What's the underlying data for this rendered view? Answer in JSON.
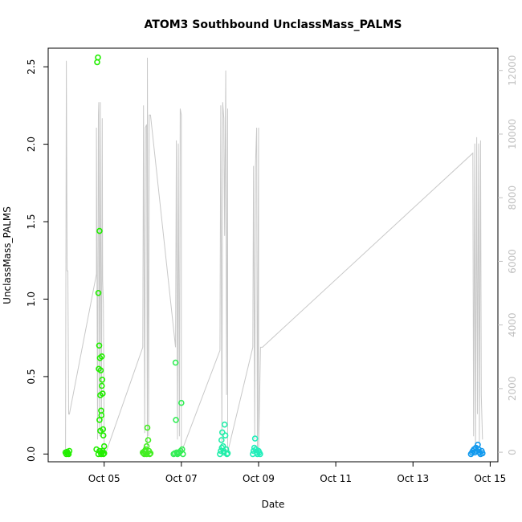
{
  "chart_data": {
    "type": "scatter",
    "title": "ATOM3 Southbound UnclassMass_PALMS",
    "xlabel": "Date",
    "ylabel": "UnclassMass_PALMS",
    "x_unit": "day of October",
    "xlim": [
      3.55,
      15.2
    ],
    "ylim": [
      -0.05,
      2.62
    ],
    "y2lim": [
      -300,
      12700
    ],
    "x_ticks": [
      {
        "value": 5,
        "label": "Oct 05"
      },
      {
        "value": 7,
        "label": "Oct 07"
      },
      {
        "value": 9,
        "label": "Oct 09"
      },
      {
        "value": 11,
        "label": "Oct 11"
      },
      {
        "value": 13,
        "label": "Oct 13"
      },
      {
        "value": 15,
        "label": "Oct 15"
      }
    ],
    "y_ticks": [
      {
        "value": 0.0,
        "label": "0.0"
      },
      {
        "value": 0.5,
        "label": "0.5"
      },
      {
        "value": 1.0,
        "label": "1.0"
      },
      {
        "value": 1.5,
        "label": "1.5"
      },
      {
        "value": 2.0,
        "label": "2.0"
      },
      {
        "value": 2.5,
        "label": "2.5"
      }
    ],
    "y2_ticks": [
      {
        "value": 0,
        "label": "0"
      },
      {
        "value": 2000,
        "label": "2000"
      },
      {
        "value": 4000,
        "label": "4000"
      },
      {
        "value": 6000,
        "label": "6000"
      },
      {
        "value": 8000,
        "label": "8000"
      },
      {
        "value": 10000,
        "label": "10000"
      },
      {
        "value": 12000,
        "label": "12000"
      }
    ],
    "colors": {
      "altitude_line": "#c8c8c8",
      "right_axis": "#c0c0c0",
      "axis": "#000000"
    },
    "altitude_line": {
      "name": "",
      "axis": "right",
      "x": [
        4.0,
        4.02,
        4.04,
        4.06,
        4.08,
        4.1,
        4.8,
        4.8,
        4.83,
        4.85,
        4.86,
        4.88,
        4.9,
        4.9,
        4.93,
        4.95,
        4.96,
        4.98,
        5.0,
        5.0,
        5.05,
        6.0,
        6.02,
        6.05,
        6.07,
        6.1,
        6.12,
        6.12,
        6.15,
        6.17,
        6.2,
        6.85,
        6.87,
        6.9,
        6.92,
        6.95,
        6.97,
        7.0,
        7.0,
        8.0,
        8.02,
        8.05,
        8.07,
        8.1,
        8.12,
        8.15,
        8.17,
        8.2,
        8.2,
        8.85,
        8.87,
        8.9,
        8.92,
        8.95,
        8.97,
        9.0,
        9.0,
        9.05,
        9.1,
        14.55,
        14.57,
        14.6,
        14.62,
        14.65,
        14.67,
        14.7,
        14.72,
        14.75,
        14.77,
        14.8
      ],
      "y": [
        0,
        12300,
        5700,
        5700,
        1200,
        1200,
        5600,
        10200,
        400,
        10600,
        11000,
        500,
        10400,
        11000,
        500,
        10500,
        5400,
        4700,
        500,
        0,
        0,
        3300,
        10900,
        600,
        10200,
        10300,
        0,
        12400,
        500,
        10600,
        10600,
        3300,
        9800,
        400,
        9700,
        500,
        10800,
        10600,
        0,
        3200,
        10900,
        300,
        11000,
        10500,
        6800,
        12000,
        1800,
        10800,
        0,
        3300,
        9000,
        400,
        9000,
        10200,
        0,
        10200,
        0,
        3300,
        3300,
        9400,
        500,
        9700,
        0,
        9900,
        1200,
        9700,
        300,
        9800,
        1800,
        400
      ]
    },
    "series": [
      {
        "name": "",
        "color": "#22ee00",
        "points": [
          [
            4.0,
            0.01
          ],
          [
            4.02,
            0.0
          ],
          [
            4.04,
            0.015
          ],
          [
            4.06,
            0.005
          ],
          [
            4.08,
            0.0
          ],
          [
            4.1,
            0.02
          ],
          [
            4.8,
            0.03
          ],
          [
            4.82,
            2.53
          ],
          [
            4.84,
            2.56
          ],
          [
            4.85,
            1.04
          ],
          [
            4.86,
            0.55
          ],
          [
            4.87,
            0.7
          ],
          [
            4.88,
            1.44
          ],
          [
            4.88,
            0.22
          ],
          [
            4.89,
            0.62
          ],
          [
            4.9,
            0.38
          ],
          [
            4.9,
            0.15
          ],
          [
            4.91,
            0.54
          ],
          [
            4.92,
            0.28
          ],
          [
            4.93,
            0.25
          ],
          [
            4.94,
            0.63
          ],
          [
            4.94,
            0.44
          ],
          [
            4.95,
            0.48
          ],
          [
            4.96,
            0.39
          ],
          [
            4.97,
            0.16
          ],
          [
            4.98,
            0.12
          ],
          [
            5.0,
            0.05
          ],
          [
            4.92,
            0.0
          ],
          [
            4.94,
            0.01
          ],
          [
            4.96,
            0.02
          ],
          [
            4.98,
            0.0
          ],
          [
            5.0,
            0.005
          ],
          [
            4.85,
            0.0
          ],
          [
            4.88,
            0.02
          ]
        ]
      },
      {
        "name": "",
        "color": "#44ee22",
        "points": [
          [
            6.0,
            0.01
          ],
          [
            6.02,
            0.005
          ],
          [
            6.04,
            0.0
          ],
          [
            6.06,
            0.015
          ],
          [
            6.08,
            0.03
          ],
          [
            6.1,
            0.05
          ],
          [
            6.12,
            0.17
          ],
          [
            6.14,
            0.09
          ],
          [
            6.16,
            0.02
          ],
          [
            6.18,
            0.0
          ],
          [
            6.2,
            0.005
          ],
          [
            6.05,
            0.02
          ],
          [
            6.1,
            0.0
          ]
        ]
      },
      {
        "name": "",
        "color": "#33ee55",
        "points": [
          [
            6.8,
            0.0
          ],
          [
            6.83,
            0.005
          ],
          [
            6.85,
            0.59
          ],
          [
            6.86,
            0.22
          ],
          [
            6.88,
            0.01
          ],
          [
            6.9,
            0.0
          ],
          [
            6.93,
            0.005
          ],
          [
            6.95,
            0.01
          ],
          [
            6.98,
            0.02
          ],
          [
            7.0,
            0.33
          ],
          [
            7.02,
            0.03
          ],
          [
            7.04,
            0.0
          ]
        ]
      },
      {
        "name": "",
        "color": "#22eeaa",
        "points": [
          [
            8.0,
            0.0
          ],
          [
            8.02,
            0.02
          ],
          [
            8.04,
            0.09
          ],
          [
            8.06,
            0.14
          ],
          [
            8.08,
            0.05
          ],
          [
            8.1,
            0.01
          ],
          [
            8.12,
            0.19
          ],
          [
            8.14,
            0.12
          ],
          [
            8.16,
            0.03
          ],
          [
            8.18,
            0.0
          ],
          [
            8.2,
            0.005
          ],
          [
            8.05,
            0.04
          ],
          [
            8.1,
            0.02
          ]
        ]
      },
      {
        "name": "",
        "color": "#22eebb",
        "points": [
          [
            8.85,
            0.0
          ],
          [
            8.87,
            0.02
          ],
          [
            8.89,
            0.04
          ],
          [
            8.91,
            0.1
          ],
          [
            8.93,
            0.03
          ],
          [
            8.95,
            0.01
          ],
          [
            8.97,
            0.0
          ],
          [
            9.0,
            0.02
          ],
          [
            9.02,
            0.01
          ],
          [
            9.04,
            0.0
          ]
        ]
      },
      {
        "name": "",
        "color": "#1199ee",
        "points": [
          [
            14.5,
            0.0
          ],
          [
            14.53,
            0.01
          ],
          [
            14.55,
            0.02
          ],
          [
            14.58,
            0.03
          ],
          [
            14.6,
            0.01
          ],
          [
            14.63,
            0.04
          ],
          [
            14.65,
            0.02
          ],
          [
            14.68,
            0.06
          ],
          [
            14.7,
            0.03
          ],
          [
            14.72,
            0.01
          ],
          [
            14.75,
            0.0
          ],
          [
            14.78,
            0.02
          ],
          [
            14.8,
            0.005
          ]
        ]
      }
    ]
  }
}
